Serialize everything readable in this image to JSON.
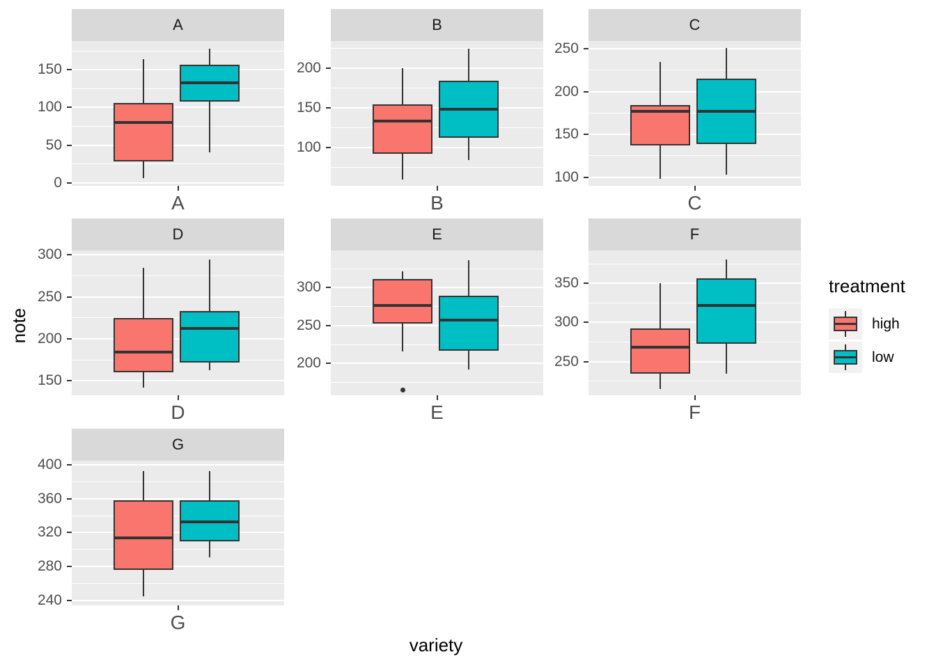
{
  "titles": {
    "y": "note",
    "x": "variety"
  },
  "legend": {
    "title": "treatment",
    "items": [
      {
        "label": "high",
        "color": "#F8766D"
      },
      {
        "label": "low",
        "color": "#00BFC4"
      }
    ]
  },
  "style": {
    "panel_bg": "#EBEBEB",
    "strip_bg": "#D9D9D9",
    "gridline": "#FFFFFF",
    "box_outline": "#333333",
    "tick_text": "#4D4D4D",
    "high_fill": "#F8766D",
    "low_fill": "#00BFC4"
  },
  "chart_data": {
    "type": "boxplot",
    "facet_variable": "variety",
    "x_axis_label": "variety",
    "y_axis_label": "note",
    "legend_position": "right",
    "grid": true,
    "facets": [
      {
        "label": "A",
        "x_tick": "A",
        "row": 0,
        "col": 0,
        "y_ticks": [
          0,
          50,
          100,
          150
        ],
        "y_range": [
          -4,
          188
        ],
        "boxes": [
          {
            "treatment": "high",
            "whisker_min": 6,
            "q1": 28,
            "median": 80,
            "q3": 106,
            "whisker_max": 164,
            "outliers": []
          },
          {
            "treatment": "low",
            "whisker_min": 40,
            "q1": 108,
            "median": 133,
            "q3": 157,
            "whisker_max": 178,
            "outliers": []
          }
        ]
      },
      {
        "label": "B",
        "x_tick": "B",
        "row": 0,
        "col": 1,
        "y_ticks": [
          100,
          150,
          200
        ],
        "y_range": [
          52,
          234
        ],
        "boxes": [
          {
            "treatment": "high",
            "whisker_min": 60,
            "q1": 92,
            "median": 133,
            "q3": 154,
            "whisker_max": 200,
            "outliers": []
          },
          {
            "treatment": "low",
            "whisker_min": 84,
            "q1": 112,
            "median": 148,
            "q3": 184,
            "whisker_max": 224,
            "outliers": []
          }
        ]
      },
      {
        "label": "C",
        "x_tick": "C",
        "row": 0,
        "col": 2,
        "y_ticks": [
          100,
          150,
          200,
          250
        ],
        "y_range": [
          90,
          259
        ],
        "boxes": [
          {
            "treatment": "high",
            "whisker_min": 98,
            "q1": 137,
            "median": 177,
            "q3": 184,
            "whisker_max": 235,
            "outliers": []
          },
          {
            "treatment": "low",
            "whisker_min": 103,
            "q1": 139,
            "median": 177,
            "q3": 215,
            "whisker_max": 251,
            "outliers": []
          }
        ]
      },
      {
        "label": "D",
        "x_tick": "D",
        "row": 1,
        "col": 0,
        "y_ticks": [
          150,
          200,
          250,
          300
        ],
        "y_range": [
          133,
          305
        ],
        "boxes": [
          {
            "treatment": "high",
            "whisker_min": 142,
            "q1": 160,
            "median": 184,
            "q3": 225,
            "whisker_max": 284,
            "outliers": []
          },
          {
            "treatment": "low",
            "whisker_min": 163,
            "q1": 172,
            "median": 212,
            "q3": 233,
            "whisker_max": 294,
            "outliers": []
          }
        ]
      },
      {
        "label": "E",
        "x_tick": "E",
        "row": 1,
        "col": 1,
        "y_ticks": [
          200,
          250,
          300
        ],
        "y_range": [
          158,
          349
        ],
        "boxes": [
          {
            "treatment": "high",
            "whisker_min": 216,
            "q1": 253,
            "median": 276,
            "q3": 311,
            "whisker_max": 321,
            "outliers": [
              165
            ]
          },
          {
            "treatment": "low",
            "whisker_min": 192,
            "q1": 217,
            "median": 257,
            "q3": 289,
            "whisker_max": 336,
            "outliers": []
          }
        ]
      },
      {
        "label": "F",
        "x_tick": "F",
        "row": 1,
        "col": 2,
        "y_ticks": [
          250,
          300,
          350
        ],
        "y_range": [
          207,
          392
        ],
        "boxes": [
          {
            "treatment": "high",
            "whisker_min": 215,
            "q1": 235,
            "median": 268,
            "q3": 292,
            "whisker_max": 350,
            "outliers": []
          },
          {
            "treatment": "low",
            "whisker_min": 235,
            "q1": 273,
            "median": 322,
            "q3": 356,
            "whisker_max": 380,
            "outliers": []
          }
        ]
      },
      {
        "label": "G",
        "x_tick": "G",
        "row": 2,
        "col": 0,
        "y_ticks": [
          240,
          280,
          320,
          360,
          400
        ],
        "y_range": [
          234,
          405
        ],
        "boxes": [
          {
            "treatment": "high",
            "whisker_min": 245,
            "q1": 276,
            "median": 314,
            "q3": 358,
            "whisker_max": 393,
            "outliers": []
          },
          {
            "treatment": "low",
            "whisker_min": 291,
            "q1": 310,
            "median": 333,
            "q3": 358,
            "whisker_max": 393,
            "outliers": []
          }
        ]
      }
    ]
  }
}
